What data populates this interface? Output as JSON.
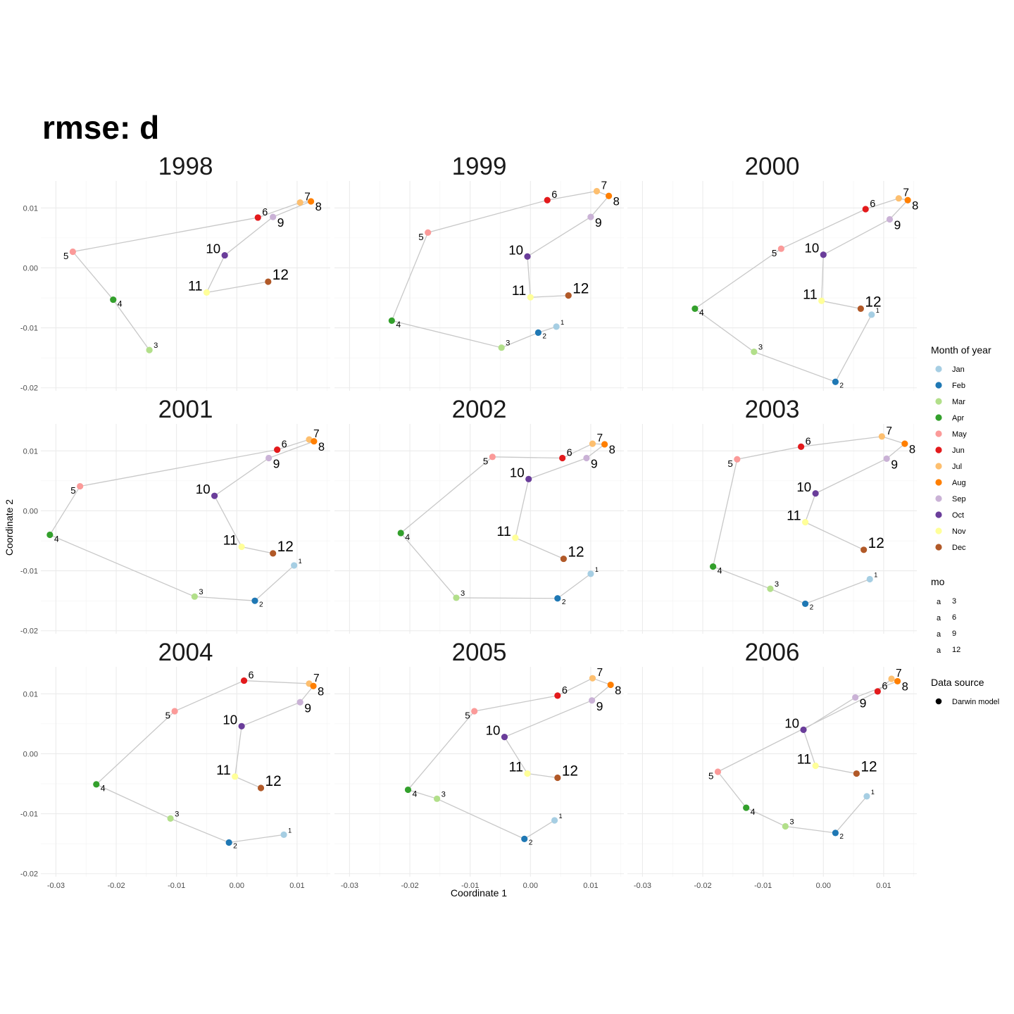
{
  "chart_data": {
    "type": "scatter",
    "title": "rmse: d",
    "xlabel": "Coordinate 1",
    "ylabel": "Coordinate 2",
    "xlim": [
      -0.0325,
      0.0155
    ],
    "ylim": [
      -0.0205,
      0.0145
    ],
    "x_ticks": [
      -0.03,
      -0.02,
      -0.01,
      0.0,
      0.01
    ],
    "x_tick_labels": [
      "-0.03",
      "-0.02",
      "-0.01",
      "0.00",
      "0.01"
    ],
    "y_ticks": [
      -0.02,
      -0.01,
      0.0,
      0.01
    ],
    "y_tick_labels": [
      "-0.02",
      "-0.01",
      "0.00",
      "0.01"
    ],
    "grid": true,
    "legends": {
      "month": {
        "title": "Month of year",
        "entries": [
          "Jan",
          "Feb",
          "Mar",
          "Apr",
          "May",
          "Jun",
          "Jul",
          "Aug",
          "Sep",
          "Oct",
          "Nov",
          "Dec"
        ],
        "colors": [
          "#a6cee3",
          "#1f78b4",
          "#b2df8a",
          "#33a02c",
          "#fb9a99",
          "#e31a1c",
          "#fdbf6f",
          "#ff7f00",
          "#cab2d6",
          "#6a3d9a",
          "#ffff99",
          "#b15928"
        ]
      },
      "size": {
        "title": "mo",
        "glyph": "a",
        "entries": [
          "3",
          "6",
          "9",
          "12"
        ]
      },
      "source": {
        "title": "Data source",
        "entries": [
          "Darwin model"
        ]
      }
    },
    "panels": [
      {
        "year": "1998",
        "points": [
          {
            "m": 3,
            "x": -0.0145,
            "y": -0.0137
          },
          {
            "m": 4,
            "x": -0.0205,
            "y": -0.0053
          },
          {
            "m": 5,
            "x": -0.0272,
            "y": 0.0027
          },
          {
            "m": 6,
            "x": 0.0035,
            "y": 0.0084
          },
          {
            "m": 7,
            "x": 0.0105,
            "y": 0.0109
          },
          {
            "m": 8,
            "x": 0.0123,
            "y": 0.0111
          },
          {
            "m": 9,
            "x": 0.006,
            "y": 0.0085
          },
          {
            "m": 10,
            "x": -0.002,
            "y": 0.0021
          },
          {
            "m": 11,
            "x": -0.005,
            "y": -0.0041
          },
          {
            "m": 12,
            "x": 0.0052,
            "y": -0.0023
          }
        ]
      },
      {
        "year": "1999",
        "points": [
          {
            "m": 1,
            "x": 0.0043,
            "y": -0.0098
          },
          {
            "m": 2,
            "x": 0.0013,
            "y": -0.0108
          },
          {
            "m": 3,
            "x": -0.0048,
            "y": -0.0133
          },
          {
            "m": 4,
            "x": -0.023,
            "y": -0.0088
          },
          {
            "m": 5,
            "x": -0.017,
            "y": 0.0059
          },
          {
            "m": 6,
            "x": 0.0028,
            "y": 0.0113
          },
          {
            "m": 7,
            "x": 0.011,
            "y": 0.0128
          },
          {
            "m": 8,
            "x": 0.013,
            "y": 0.012
          },
          {
            "m": 9,
            "x": 0.01,
            "y": 0.0085
          },
          {
            "m": 10,
            "x": -0.0005,
            "y": 0.0019
          },
          {
            "m": 11,
            "x": 0.0,
            "y": -0.0049
          },
          {
            "m": 12,
            "x": 0.0063,
            "y": -0.0046
          }
        ]
      },
      {
        "year": "2000",
        "points": [
          {
            "m": 1,
            "x": 0.008,
            "y": -0.0078
          },
          {
            "m": 2,
            "x": 0.002,
            "y": -0.019
          },
          {
            "m": 3,
            "x": -0.0115,
            "y": -0.014
          },
          {
            "m": 4,
            "x": -0.0213,
            "y": -0.0068
          },
          {
            "m": 5,
            "x": -0.007,
            "y": 0.0032
          },
          {
            "m": 6,
            "x": 0.007,
            "y": 0.0098
          },
          {
            "m": 7,
            "x": 0.0125,
            "y": 0.0116
          },
          {
            "m": 8,
            "x": 0.014,
            "y": 0.0113
          },
          {
            "m": 9,
            "x": 0.011,
            "y": 0.0081
          },
          {
            "m": 10,
            "x": 0.0,
            "y": 0.0022
          },
          {
            "m": 11,
            "x": -0.0003,
            "y": -0.0055
          },
          {
            "m": 12,
            "x": 0.0062,
            "y": -0.0068
          }
        ]
      },
      {
        "year": "2001",
        "points": [
          {
            "m": 1,
            "x": 0.0095,
            "y": -0.0091
          },
          {
            "m": 2,
            "x": 0.003,
            "y": -0.015
          },
          {
            "m": 3,
            "x": -0.007,
            "y": -0.0143
          },
          {
            "m": 4,
            "x": -0.031,
            "y": -0.004
          },
          {
            "m": 5,
            "x": -0.026,
            "y": 0.0041
          },
          {
            "m": 6,
            "x": 0.0067,
            "y": 0.0102
          },
          {
            "m": 7,
            "x": 0.012,
            "y": 0.0119
          },
          {
            "m": 8,
            "x": 0.0128,
            "y": 0.0116
          },
          {
            "m": 9,
            "x": 0.0053,
            "y": 0.0088
          },
          {
            "m": 10,
            "x": -0.0037,
            "y": 0.0025
          },
          {
            "m": 11,
            "x": 0.0008,
            "y": -0.006
          },
          {
            "m": 12,
            "x": 0.006,
            "y": -0.0071
          }
        ]
      },
      {
        "year": "2002",
        "points": [
          {
            "m": 1,
            "x": 0.01,
            "y": -0.0105
          },
          {
            "m": 2,
            "x": 0.0045,
            "y": -0.0146
          },
          {
            "m": 3,
            "x": -0.0123,
            "y": -0.0145
          },
          {
            "m": 4,
            "x": -0.0215,
            "y": -0.0037
          },
          {
            "m": 5,
            "x": -0.0063,
            "y": 0.009
          },
          {
            "m": 6,
            "x": 0.0053,
            "y": 0.0088
          },
          {
            "m": 7,
            "x": 0.0103,
            "y": 0.0112
          },
          {
            "m": 8,
            "x": 0.0123,
            "y": 0.0111
          },
          {
            "m": 9,
            "x": 0.0093,
            "y": 0.0088
          },
          {
            "m": 10,
            "x": -0.0003,
            "y": 0.0053
          },
          {
            "m": 11,
            "x": -0.0025,
            "y": -0.0045
          },
          {
            "m": 12,
            "x": 0.0055,
            "y": -0.008
          }
        ]
      },
      {
        "year": "2003",
        "points": [
          {
            "m": 1,
            "x": 0.0077,
            "y": -0.0114
          },
          {
            "m": 2,
            "x": -0.003,
            "y": -0.0155
          },
          {
            "m": 3,
            "x": -0.0088,
            "y": -0.013
          },
          {
            "m": 4,
            "x": -0.0183,
            "y": -0.0093
          },
          {
            "m": 5,
            "x": -0.0143,
            "y": 0.0086
          },
          {
            "m": 6,
            "x": -0.0037,
            "y": 0.0107
          },
          {
            "m": 7,
            "x": 0.0097,
            "y": 0.0124
          },
          {
            "m": 8,
            "x": 0.0135,
            "y": 0.0112
          },
          {
            "m": 9,
            "x": 0.0105,
            "y": 0.0087
          },
          {
            "m": 10,
            "x": -0.0013,
            "y": 0.0029
          },
          {
            "m": 11,
            "x": -0.003,
            "y": -0.0019
          },
          {
            "m": 12,
            "x": 0.0067,
            "y": -0.0065
          }
        ]
      },
      {
        "year": "2004",
        "points": [
          {
            "m": 1,
            "x": 0.0078,
            "y": -0.0135
          },
          {
            "m": 2,
            "x": -0.0013,
            "y": -0.0148
          },
          {
            "m": 3,
            "x": -0.011,
            "y": -0.0108
          },
          {
            "m": 4,
            "x": -0.0233,
            "y": -0.0051
          },
          {
            "m": 5,
            "x": -0.0103,
            "y": 0.0071
          },
          {
            "m": 6,
            "x": 0.0012,
            "y": 0.0122
          },
          {
            "m": 7,
            "x": 0.012,
            "y": 0.0117
          },
          {
            "m": 8,
            "x": 0.0127,
            "y": 0.0113
          },
          {
            "m": 9,
            "x": 0.0105,
            "y": 0.0086
          },
          {
            "m": 10,
            "x": 0.0008,
            "y": 0.0046
          },
          {
            "m": 11,
            "x": -0.0003,
            "y": -0.0038
          },
          {
            "m": 12,
            "x": 0.004,
            "y": -0.0057
          }
        ]
      },
      {
        "year": "2005",
        "points": [
          {
            "m": 1,
            "x": 0.004,
            "y": -0.0111
          },
          {
            "m": 2,
            "x": -0.001,
            "y": -0.0142
          },
          {
            "m": 3,
            "x": -0.0155,
            "y": -0.0075
          },
          {
            "m": 4,
            "x": -0.0203,
            "y": -0.006
          },
          {
            "m": 5,
            "x": -0.0093,
            "y": 0.0071
          },
          {
            "m": 6,
            "x": 0.0045,
            "y": 0.0097
          },
          {
            "m": 7,
            "x": 0.0103,
            "y": 0.0126
          },
          {
            "m": 8,
            "x": 0.0133,
            "y": 0.0115
          },
          {
            "m": 9,
            "x": 0.0102,
            "y": 0.0089
          },
          {
            "m": 10,
            "x": -0.0043,
            "y": 0.0028
          },
          {
            "m": 11,
            "x": -0.0005,
            "y": -0.0033
          },
          {
            "m": 12,
            "x": 0.0045,
            "y": -0.004
          }
        ]
      },
      {
        "year": "2006",
        "points": [
          {
            "m": 1,
            "x": 0.0072,
            "y": -0.0071
          },
          {
            "m": 2,
            "x": 0.002,
            "y": -0.0132
          },
          {
            "m": 3,
            "x": -0.0063,
            "y": -0.0121
          },
          {
            "m": 4,
            "x": -0.0128,
            "y": -0.009
          },
          {
            "m": 5,
            "x": -0.0175,
            "y": -0.003
          },
          {
            "m": 6,
            "x": 0.009,
            "y": 0.0104
          },
          {
            "m": 7,
            "x": 0.0113,
            "y": 0.0125
          },
          {
            "m": 8,
            "x": 0.0123,
            "y": 0.0121
          },
          {
            "m": 9,
            "x": 0.0053,
            "y": 0.0094
          },
          {
            "m": 10,
            "x": -0.0033,
            "y": 0.004
          },
          {
            "m": 11,
            "x": -0.0013,
            "y": -0.002
          },
          {
            "m": 12,
            "x": 0.0055,
            "y": -0.0033
          }
        ]
      }
    ]
  }
}
